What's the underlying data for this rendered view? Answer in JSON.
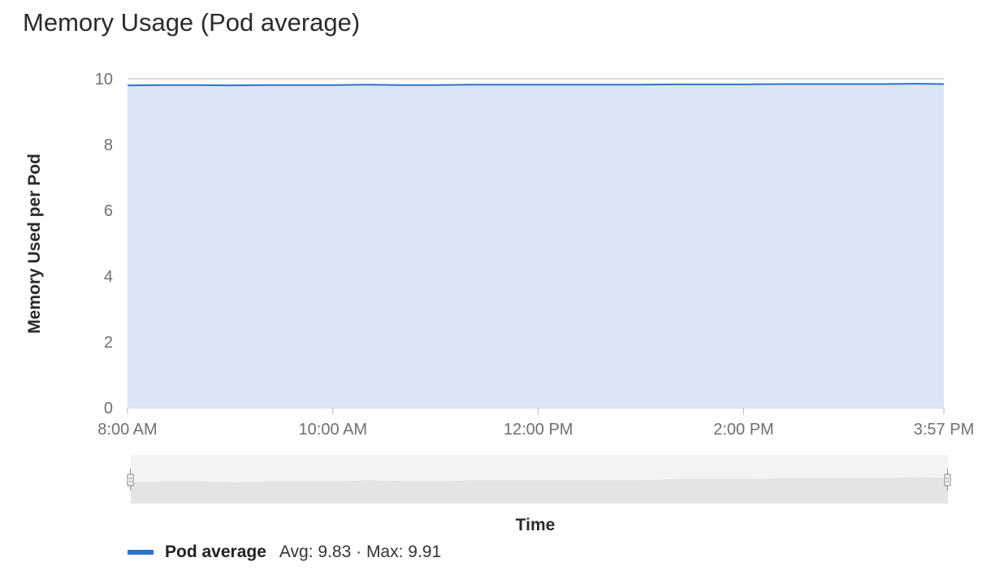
{
  "title": "Memory Usage (Pod average)",
  "colors": {
    "line": "#2a75c8",
    "area": "#dae6f5",
    "grid": "#aab8cc",
    "navigator_area": "#e4e4e4",
    "navigator_bg": "#f3f3f3"
  },
  "legend": {
    "name": "Pod average",
    "avg_label": "Avg: 9.83",
    "separator": " · ",
    "max_label": "Max: 9.91"
  },
  "chart_data": {
    "type": "area",
    "title": "Memory Usage (Pod average)",
    "ylabel": "Memory Used per Pod",
    "xlabel": "Time",
    "ylim": [
      0,
      10
    ],
    "yticks": [
      "0",
      "2",
      "4",
      "6",
      "8",
      "10"
    ],
    "xticks": [
      "8:00 AM",
      "10:00 AM",
      "12:00 PM",
      "2:00 PM",
      "3:57 PM"
    ],
    "x_range": [
      "8:00 AM",
      "3:57 PM"
    ],
    "grid": true,
    "legend_position": "bottom-left",
    "series": [
      {
        "name": "Pod average",
        "x": [
          "8:00 AM",
          "8:20 AM",
          "8:40 AM",
          "9:00 AM",
          "9:20 AM",
          "9:40 AM",
          "10:00 AM",
          "10:20 AM",
          "10:40 AM",
          "11:00 AM",
          "11:20 AM",
          "11:40 AM",
          "12:00 PM",
          "12:20 PM",
          "12:40 PM",
          "1:00 PM",
          "1:20 PM",
          "1:40 PM",
          "2:00 PM",
          "2:20 PM",
          "2:40 PM",
          "3:00 PM",
          "3:20 PM",
          "3:40 PM",
          "3:57 PM"
        ],
        "values": [
          9.8,
          9.81,
          9.81,
          9.8,
          9.81,
          9.81,
          9.81,
          9.82,
          9.81,
          9.81,
          9.82,
          9.82,
          9.82,
          9.82,
          9.82,
          9.82,
          9.83,
          9.83,
          9.83,
          9.84,
          9.84,
          9.84,
          9.84,
          9.85,
          9.84
        ],
        "avg": 9.83,
        "max": 9.91
      }
    ]
  }
}
